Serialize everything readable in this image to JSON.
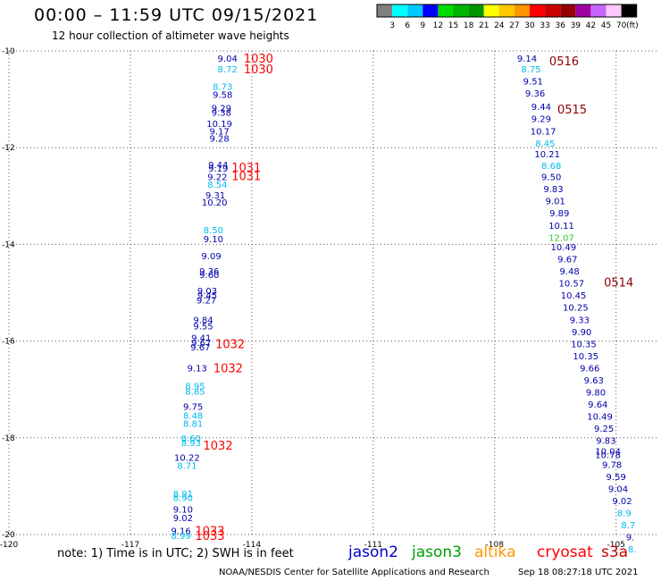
{
  "header": {
    "title": "00:00 – 11:59 UTC 09/15/2021",
    "subtitle": "12 hour collection of altimeter wave heights"
  },
  "colorbar": {
    "colors": [
      "#808080",
      "#00ffff",
      "#00c8ff",
      "#0000ff",
      "#00dc00",
      "#00b400",
      "#009600",
      "#ffff00",
      "#ffc800",
      "#ff9600",
      "#ff0000",
      "#c80000",
      "#960000",
      "#a000a0",
      "#c864ff",
      "#ffc8ff",
      "#000000"
    ],
    "labels": [
      "3",
      "6",
      "9",
      "12",
      "15",
      "18",
      "21",
      "24",
      "27",
      "30",
      "33",
      "36",
      "39",
      "42",
      "45",
      "70"
    ],
    "unit": "(ft)"
  },
  "legend": [
    {
      "name": "jason2",
      "color": "#0000c8"
    },
    {
      "name": "jason3",
      "color": "#00a000"
    },
    {
      "name": "altika",
      "color": "#ff9600"
    },
    {
      "name": "cryosat",
      "color": "#ff0000"
    },
    {
      "name": "s3a",
      "color": "#c80000"
    }
  ],
  "footer": {
    "note": "note:  1) Time is in UTC;  2) SWH is in feet",
    "credit": "NOAA/NESDIS Center for Satellite Applications and Research",
    "timestamp": "Sep 18 08:27:18 UTC 2021"
  },
  "chart_data": {
    "type": "scatter",
    "xlim": [
      -120,
      -104
    ],
    "ylim": [
      -20,
      -10
    ],
    "x_ticks": [
      "-120",
      "-117",
      "-114",
      "-111",
      "-108",
      "-105"
    ],
    "y_ticks": [
      "-10",
      "-12",
      "-14",
      "-16",
      "-18",
      "-20"
    ],
    "grid": "dotted",
    "colors": {
      "dark": "#0000aa",
      "light": "#00bbee",
      "green": "#33cc33",
      "time": "#ff0000",
      "time_dark": "#8b0000"
    },
    "swh_points": [
      {
        "x": -114.6,
        "y": -10.15,
        "v": "9.04",
        "c": "dark"
      },
      {
        "x": -114.6,
        "y": -10.37,
        "v": "8.72",
        "c": "light"
      },
      {
        "x": -114.72,
        "y": -10.73,
        "v": "8.73",
        "c": "light"
      },
      {
        "x": -114.72,
        "y": -10.9,
        "v": "9.58",
        "c": "dark"
      },
      {
        "x": -114.75,
        "y": -11.17,
        "v": "9.29",
        "c": "dark"
      },
      {
        "x": -114.75,
        "y": -11.27,
        "v": "9.38",
        "c": "dark"
      },
      {
        "x": -114.8,
        "y": -11.5,
        "v": "10.19",
        "c": "dark"
      },
      {
        "x": -114.8,
        "y": -11.65,
        "v": "9.17",
        "c": "dark"
      },
      {
        "x": -114.8,
        "y": -11.8,
        "v": "9.28",
        "c": "dark"
      },
      {
        "x": -114.83,
        "y": -12.35,
        "v": "9.44",
        "c": "dark"
      },
      {
        "x": -114.83,
        "y": -12.42,
        "v": "9.19",
        "c": "dark"
      },
      {
        "x": -114.85,
        "y": -12.6,
        "v": "9.22",
        "c": "dark"
      },
      {
        "x": -114.85,
        "y": -12.75,
        "v": "8.54",
        "c": "light"
      },
      {
        "x": -114.9,
        "y": -12.98,
        "v": "9.31",
        "c": "dark"
      },
      {
        "x": -114.92,
        "y": -13.12,
        "v": "10.20",
        "c": "dark"
      },
      {
        "x": -114.95,
        "y": -13.7,
        "v": "8.50",
        "c": "light"
      },
      {
        "x": -114.95,
        "y": -13.88,
        "v": "9.10",
        "c": "dark"
      },
      {
        "x": -115.0,
        "y": -14.23,
        "v": "9.09",
        "c": "dark"
      },
      {
        "x": -115.05,
        "y": -14.55,
        "v": "9.36",
        "c": "dark"
      },
      {
        "x": -115.05,
        "y": -14.62,
        "v": "9.60",
        "c": "dark"
      },
      {
        "x": -115.1,
        "y": -14.95,
        "v": "9.03",
        "c": "dark"
      },
      {
        "x": -115.1,
        "y": -15.05,
        "v": "9.45",
        "c": "dark"
      },
      {
        "x": -115.12,
        "y": -15.15,
        "v": "9.27",
        "c": "dark"
      },
      {
        "x": -115.2,
        "y": -15.55,
        "v": "9.84",
        "c": "dark"
      },
      {
        "x": -115.2,
        "y": -15.68,
        "v": "9.55",
        "c": "dark"
      },
      {
        "x": -115.25,
        "y": -15.92,
        "v": "9.41",
        "c": "dark"
      },
      {
        "x": -115.25,
        "y": -16.03,
        "v": "9.67",
        "c": "dark"
      },
      {
        "x": -115.27,
        "y": -16.12,
        "v": "9.67",
        "c": "dark"
      },
      {
        "x": -115.35,
        "y": -16.55,
        "v": "9.13",
        "c": "dark"
      },
      {
        "x": -115.4,
        "y": -16.92,
        "v": "8.95",
        "c": "light"
      },
      {
        "x": -115.4,
        "y": -17.03,
        "v": "8.85",
        "c": "light"
      },
      {
        "x": -115.45,
        "y": -17.35,
        "v": "9.75",
        "c": "dark"
      },
      {
        "x": -115.45,
        "y": -17.53,
        "v": "8.48",
        "c": "light"
      },
      {
        "x": -115.45,
        "y": -17.7,
        "v": "8.81",
        "c": "light"
      },
      {
        "x": -115.5,
        "y": -18.0,
        "v": "8.60",
        "c": "light"
      },
      {
        "x": -115.5,
        "y": -18.1,
        "v": "8.93",
        "c": "light"
      },
      {
        "x": -115.6,
        "y": -18.4,
        "v": "10.22",
        "c": "dark"
      },
      {
        "x": -115.6,
        "y": -18.57,
        "v": "8.71",
        "c": "light"
      },
      {
        "x": -115.7,
        "y": -19.15,
        "v": "8.91",
        "c": "light"
      },
      {
        "x": -115.7,
        "y": -19.23,
        "v": "8.90",
        "c": "light"
      },
      {
        "x": -115.7,
        "y": -19.47,
        "v": "9.10",
        "c": "dark"
      },
      {
        "x": -115.7,
        "y": -19.65,
        "v": "9.02",
        "c": "dark"
      },
      {
        "x": -115.75,
        "y": -19.92,
        "v": "9.16",
        "c": "dark"
      },
      {
        "x": -115.75,
        "y": -20.02,
        "v": "8.99",
        "c": "light"
      },
      {
        "x": -107.2,
        "y": -10.15,
        "v": "9.14",
        "c": "dark"
      },
      {
        "x": -107.1,
        "y": -10.37,
        "v": "8.75",
        "c": "light"
      },
      {
        "x": -107.05,
        "y": -10.62,
        "v": "9.51",
        "c": "dark"
      },
      {
        "x": -107.0,
        "y": -10.87,
        "v": "9.36",
        "c": "dark"
      },
      {
        "x": -106.85,
        "y": -11.15,
        "v": "9.44",
        "c": "dark"
      },
      {
        "x": -106.85,
        "y": -11.4,
        "v": "9.29",
        "c": "dark"
      },
      {
        "x": -106.8,
        "y": -11.65,
        "v": "10.17",
        "c": "dark"
      },
      {
        "x": -106.75,
        "y": -11.9,
        "v": "8.45",
        "c": "light"
      },
      {
        "x": -106.7,
        "y": -12.13,
        "v": "10.21",
        "c": "dark"
      },
      {
        "x": -106.6,
        "y": -12.37,
        "v": "8.68",
        "c": "light"
      },
      {
        "x": -106.6,
        "y": -12.6,
        "v": "9.50",
        "c": "dark"
      },
      {
        "x": -106.55,
        "y": -12.85,
        "v": "9.83",
        "c": "dark"
      },
      {
        "x": -106.5,
        "y": -13.1,
        "v": "9.01",
        "c": "dark"
      },
      {
        "x": -106.4,
        "y": -13.35,
        "v": "9.89",
        "c": "dark"
      },
      {
        "x": -106.35,
        "y": -13.6,
        "v": "10.11",
        "c": "dark"
      },
      {
        "x": -106.35,
        "y": -13.85,
        "v": "12.07",
        "c": "green"
      },
      {
        "x": -106.3,
        "y": -14.05,
        "v": "10.49",
        "c": "dark"
      },
      {
        "x": -106.2,
        "y": -14.3,
        "v": "9.67",
        "c": "dark"
      },
      {
        "x": -106.15,
        "y": -14.55,
        "v": "9.48",
        "c": "dark"
      },
      {
        "x": -106.1,
        "y": -14.8,
        "v": "10.57",
        "c": "dark"
      },
      {
        "x": -106.05,
        "y": -15.05,
        "v": "10.45",
        "c": "dark"
      },
      {
        "x": -106.0,
        "y": -15.3,
        "v": "10.25",
        "c": "dark"
      },
      {
        "x": -105.9,
        "y": -15.55,
        "v": "9.33",
        "c": "dark"
      },
      {
        "x": -105.85,
        "y": -15.8,
        "v": "9.90",
        "c": "dark"
      },
      {
        "x": -105.8,
        "y": -16.05,
        "v": "10.35",
        "c": "dark"
      },
      {
        "x": -105.75,
        "y": -16.3,
        "v": "10.35",
        "c": "dark"
      },
      {
        "x": -105.65,
        "y": -16.55,
        "v": "9.66",
        "c": "dark"
      },
      {
        "x": -105.55,
        "y": -16.8,
        "v": "9.63",
        "c": "dark"
      },
      {
        "x": -105.5,
        "y": -17.05,
        "v": "9.80",
        "c": "dark"
      },
      {
        "x": -105.45,
        "y": -17.3,
        "v": "9.64",
        "c": "dark"
      },
      {
        "x": -105.4,
        "y": -17.55,
        "v": "10.49",
        "c": "dark"
      },
      {
        "x": -105.3,
        "y": -17.8,
        "v": "9.25",
        "c": "dark"
      },
      {
        "x": -105.25,
        "y": -18.05,
        "v": "9.83",
        "c": "dark"
      },
      {
        "x": -105.2,
        "y": -18.27,
        "v": "10.04",
        "c": "dark"
      },
      {
        "x": -105.2,
        "y": -18.35,
        "v": "10.78",
        "c": "dark"
      },
      {
        "x": -105.1,
        "y": -18.55,
        "v": "9.78",
        "c": "dark"
      },
      {
        "x": -105.0,
        "y": -18.8,
        "v": "9.59",
        "c": "dark"
      },
      {
        "x": -104.95,
        "y": -19.05,
        "v": "9.04",
        "c": "dark"
      },
      {
        "x": -104.85,
        "y": -19.3,
        "v": "9.02",
        "c": "dark"
      },
      {
        "x": -104.8,
        "y": -19.55,
        "v": "8.9",
        "c": "light"
      },
      {
        "x": -104.7,
        "y": -19.8,
        "v": "8.7",
        "c": "light"
      },
      {
        "x": -104.65,
        "y": -20.05,
        "v": "9.",
        "c": "dark"
      },
      {
        "x": -104.6,
        "y": -20.3,
        "v": "8.",
        "c": "light"
      }
    ],
    "time_labels": [
      {
        "x": -114.2,
        "y": -10.15,
        "v": "1030",
        "c": "time"
      },
      {
        "x": -114.2,
        "y": -10.37,
        "v": "1030",
        "c": "time"
      },
      {
        "x": -114.5,
        "y": -12.4,
        "v": "1031",
        "c": "time"
      },
      {
        "x": -114.5,
        "y": -12.58,
        "v": "1031",
        "c": "time"
      },
      {
        "x": -114.9,
        "y": -16.05,
        "v": "1032",
        "c": "time"
      },
      {
        "x": -114.95,
        "y": -16.55,
        "v": "1032",
        "c": "time"
      },
      {
        "x": -115.2,
        "y": -18.15,
        "v": "1032",
        "c": "time"
      },
      {
        "x": -115.4,
        "y": -19.92,
        "v": "1033",
        "c": "time"
      },
      {
        "x": -115.4,
        "y": -20.02,
        "v": "1033",
        "c": "time"
      },
      {
        "x": -106.65,
        "y": -10.2,
        "v": "0516",
        "c": "time_dark"
      },
      {
        "x": -106.45,
        "y": -11.2,
        "v": "0515",
        "c": "time_dark"
      },
      {
        "x": -105.3,
        "y": -14.78,
        "v": "0514",
        "c": "time_dark"
      }
    ]
  }
}
